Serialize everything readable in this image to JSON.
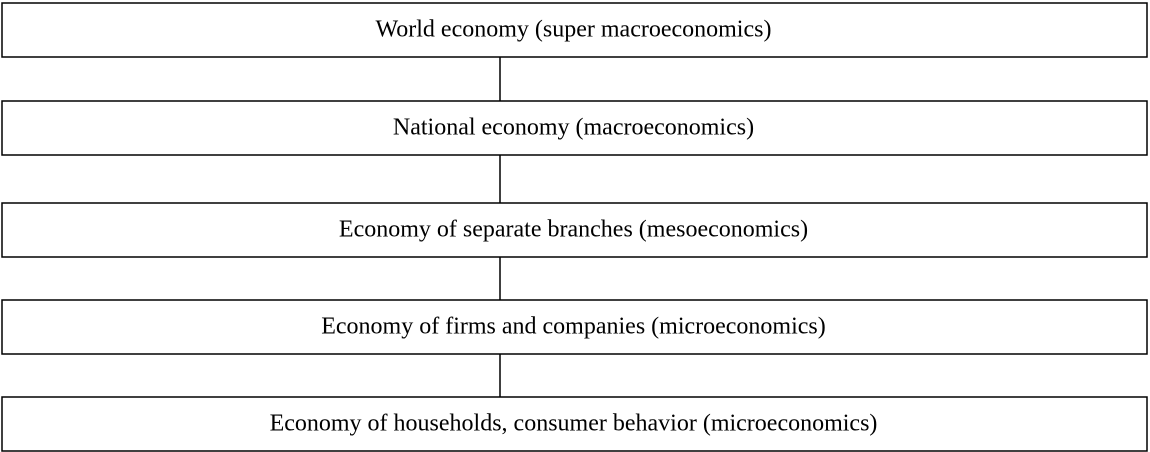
{
  "nodes": [
    {
      "label": "World economy (super macroeconomics)"
    },
    {
      "label": "National economy (macroeconomics)"
    },
    {
      "label": "Economy of separate branches (mesoeconomics)"
    },
    {
      "label": "Economy of firms and companies (microeconomics)"
    },
    {
      "label": "Economy of households, consumer behavior (microeconomics)"
    }
  ]
}
